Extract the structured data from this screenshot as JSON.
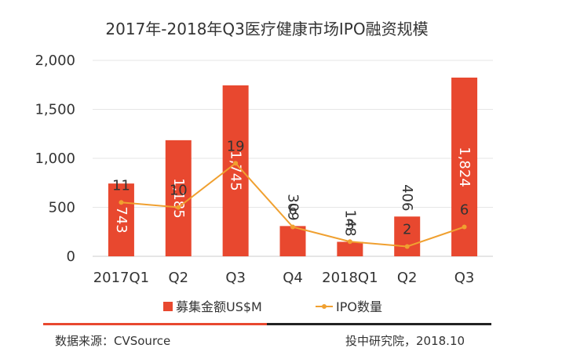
{
  "chart_data": {
    "type": "bar",
    "title": "2017年-2018年Q3医疗健康市场IPO融资规模",
    "categories": [
      "2017Q1",
      "Q2",
      "Q3",
      "Q4",
      "2018Q1",
      "Q2",
      "Q3"
    ],
    "series": [
      {
        "name": "募集金额US$M",
        "kind": "bar",
        "axis": "left",
        "values": [
          743,
          1185,
          1745,
          309,
          148,
          406,
          1824
        ],
        "labels": [
          "743",
          "1,185",
          "1,745",
          "309",
          "148",
          "406",
          "1,824"
        ],
        "color": "#e8482f"
      },
      {
        "name": "IPO数量",
        "kind": "line",
        "axis": "right",
        "values": [
          11,
          10,
          19,
          6,
          3,
          2,
          6
        ],
        "color": "#f0a030"
      }
    ],
    "yAxis": {
      "ticks": [
        "0",
        "500",
        "1,000",
        "1,500",
        "2,000"
      ],
      "range": [
        0,
        2000
      ]
    },
    "y2Range": [
      0,
      40
    ],
    "grid": true,
    "legend": "bottom"
  },
  "footer": {
    "source": "数据来源：CVSource",
    "credit": "投中研究院，2018.10",
    "accent_color": "#e8482f",
    "line_color": "#222222"
  }
}
